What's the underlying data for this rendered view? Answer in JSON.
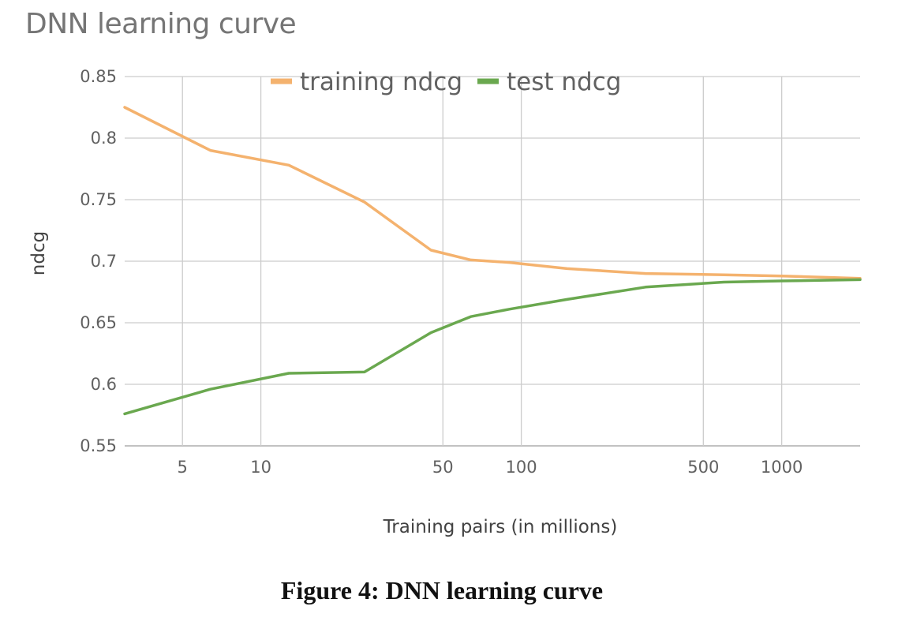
{
  "title": "DNN learning curve",
  "caption": "Figure 4: DNN learning curve",
  "chart_data": {
    "type": "line",
    "title": "DNN learning curve",
    "xlabel": "Training pairs (in millions)",
    "ylabel": "ndcg",
    "x_scale": "log",
    "xlim": [
      3,
      2000
    ],
    "ylim": [
      0.55,
      0.85
    ],
    "x_ticks": [
      5,
      10,
      50,
      100,
      500,
      1000
    ],
    "x_tick_labels": [
      "5",
      "10",
      "50",
      "100",
      "500",
      "1000"
    ],
    "y_ticks": [
      0.55,
      0.6,
      0.65,
      0.7,
      0.75,
      0.8,
      0.85
    ],
    "y_tick_labels": [
      "0.55",
      "0.6",
      "0.65",
      "0.7",
      "0.75",
      "0.8",
      "0.85"
    ],
    "grid": true,
    "legend_position": "top-center",
    "series": [
      {
        "name": "training ndcg",
        "color": "#f4b26e",
        "x": [
          3,
          6.4,
          12.8,
          25,
          45,
          64,
          90,
          150,
          300,
          600,
          1000,
          2000
        ],
        "y": [
          0.825,
          0.79,
          0.778,
          0.748,
          0.709,
          0.701,
          0.699,
          0.694,
          0.69,
          0.689,
          0.688,
          0.686
        ]
      },
      {
        "name": "test ndcg",
        "color": "#6aa84f",
        "x": [
          3,
          6.4,
          12.8,
          25,
          45,
          64,
          90,
          150,
          300,
          600,
          1000,
          2000
        ],
        "y": [
          0.576,
          0.596,
          0.609,
          0.61,
          0.642,
          0.655,
          0.661,
          0.669,
          0.679,
          0.683,
          0.684,
          0.685
        ]
      }
    ]
  }
}
